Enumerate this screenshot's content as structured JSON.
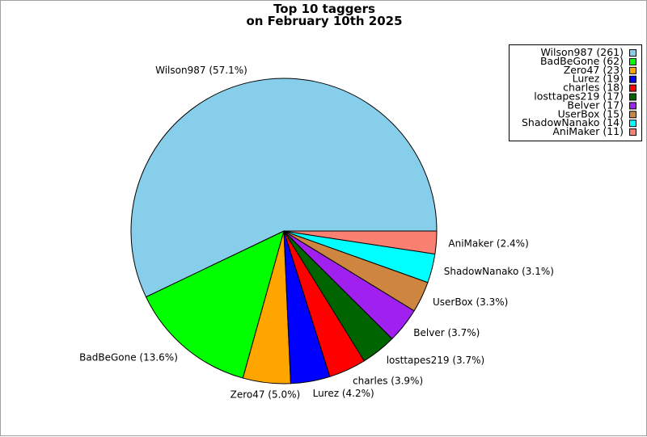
{
  "chart_data": {
    "type": "pie",
    "title": [
      "Top 10 taggers",
      "on February 10th 2025"
    ],
    "slices": [
      {
        "name": "Wilson987",
        "value": 261,
        "percent": 57.1,
        "color": "#87CEEB"
      },
      {
        "name": "BadBeGone",
        "value": 62,
        "percent": 13.6,
        "color": "#00FF00"
      },
      {
        "name": "Zero47",
        "value": 23,
        "percent": 5.0,
        "color": "#FFA500"
      },
      {
        "name": "Lurez",
        "value": 19,
        "percent": 4.2,
        "color": "#0000FF"
      },
      {
        "name": "charles",
        "value": 18,
        "percent": 3.9,
        "color": "#FF0000"
      },
      {
        "name": "losttapes219",
        "value": 17,
        "percent": 3.7,
        "color": "#006400"
      },
      {
        "name": "Belver",
        "value": 17,
        "percent": 3.7,
        "color": "#A020F0"
      },
      {
        "name": "UserBox",
        "value": 15,
        "percent": 3.3,
        "color": "#CD853F"
      },
      {
        "name": "ShadowNanako",
        "value": 14,
        "percent": 3.1,
        "color": "#00FFFF"
      },
      {
        "name": "AniMaker",
        "value": 11,
        "percent": 2.4,
        "color": "#FA8072"
      }
    ],
    "legend": {
      "placement": "top-right"
    }
  }
}
